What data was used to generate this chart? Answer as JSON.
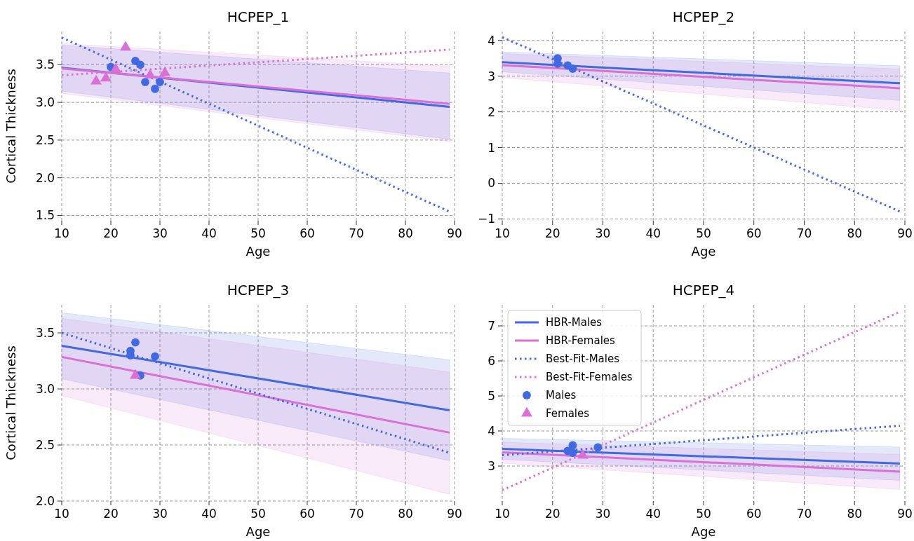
{
  "chart_data": [
    {
      "type": "line",
      "title": "HCPEP_1",
      "xlabel": "Age",
      "ylabel": "Cortical Thickness",
      "xlim": [
        10,
        90
      ],
      "xticks": [
        10,
        20,
        30,
        40,
        50,
        60,
        70,
        80,
        90
      ],
      "ylim": [
        1.43,
        3.94
      ],
      "yticks": [
        1.5,
        {
          "value": 2,
          "label": "2.0"
        },
        2.5,
        {
          "value": 3,
          "label": "3.0"
        },
        3.5
      ],
      "grid": true,
      "legend": false,
      "series": [
        {
          "type": "line",
          "color": "#4169e1",
          "line_style": "solid",
          "x": [
            10,
            89
          ],
          "values": [
            3.46,
            2.94
          ],
          "lower": [
            3.15,
            2.51
          ],
          "upper": [
            3.76,
            3.39
          ]
        },
        {
          "type": "line",
          "color": "#da70d6",
          "line_style": "solid",
          "x": [
            10,
            89
          ],
          "values": [
            3.45,
            2.98
          ],
          "lower": [
            3.12,
            2.48
          ],
          "upper": [
            3.78,
            3.48
          ]
        },
        {
          "type": "line",
          "color": "#4169e1",
          "line_style": "dotted",
          "x": [
            10,
            89
          ],
          "values": [
            3.86,
            1.55
          ]
        },
        {
          "type": "line",
          "color": "#da70d6",
          "line_style": "dotted",
          "x": [
            10,
            89
          ],
          "values": [
            3.36,
            3.7
          ]
        },
        {
          "type": "scatter",
          "color": "#4169e1",
          "marker": "circle",
          "x": [
            20,
            25,
            26,
            27,
            29,
            30
          ],
          "values": [
            3.47,
            3.55,
            3.5,
            3.27,
            3.18,
            3.27
          ]
        },
        {
          "type": "scatter",
          "color": "#da70d6",
          "marker": "triangle",
          "x": [
            17,
            19,
            21,
            23,
            28,
            31
          ],
          "values": [
            3.28,
            3.32,
            3.44,
            3.73,
            3.36,
            3.39
          ]
        }
      ]
    },
    {
      "type": "line",
      "title": "HCPEP_2",
      "xlabel": "Age",
      "xlim": [
        10,
        90
      ],
      "xticks": [
        10,
        20,
        30,
        40,
        50,
        60,
        70,
        80,
        90
      ],
      "ylim": [
        -1.05,
        4.25
      ],
      "yticks": [
        {
          "value": -1,
          "label": "−1"
        },
        0,
        1,
        2,
        3,
        4
      ],
      "grid": true,
      "legend": false,
      "series": [
        {
          "type": "line",
          "color": "#4169e1",
          "line_style": "solid",
          "x": [
            10,
            89
          ],
          "values": [
            3.39,
            2.8
          ],
          "lower": [
            3.12,
            2.32
          ],
          "upper": [
            3.68,
            3.29
          ]
        },
        {
          "type": "line",
          "color": "#da70d6",
          "line_style": "solid",
          "x": [
            10,
            89
          ],
          "values": [
            3.31,
            2.66
          ],
          "lower": [
            2.96,
            2.04
          ],
          "upper": [
            3.63,
            3.2
          ]
        },
        {
          "type": "line",
          "color": "#4169e1",
          "line_style": "dotted",
          "x": [
            10,
            89
          ],
          "values": [
            4.09,
            -0.79
          ]
        },
        {
          "type": "scatter",
          "color": "#4169e1",
          "marker": "circle",
          "x": [
            21,
            21,
            23,
            24
          ],
          "values": [
            3.5,
            3.35,
            3.3,
            3.21
          ]
        }
      ]
    },
    {
      "type": "line",
      "title": "HCPEP_3",
      "xlabel": "Age",
      "ylabel": "Cortical Thickness",
      "xlim": [
        10,
        90
      ],
      "xticks": [
        10,
        20,
        30,
        40,
        50,
        60,
        70,
        80,
        90
      ],
      "ylim": [
        2.0,
        3.75
      ],
      "yticks": [
        {
          "value": 2,
          "label": "2.0"
        },
        2.5,
        {
          "value": 3,
          "label": "3.0"
        },
        3.5
      ],
      "grid": true,
      "legend": false,
      "series": [
        {
          "type": "line",
          "color": "#4169e1",
          "line_style": "solid",
          "x": [
            10,
            89
          ],
          "values": [
            3.385,
            2.81
          ],
          "lower": [
            3.09,
            2.36
          ],
          "upper": [
            3.68,
            3.26
          ]
        },
        {
          "type": "line",
          "color": "#da70d6",
          "line_style": "solid",
          "x": [
            10,
            89
          ],
          "values": [
            3.285,
            2.61
          ],
          "lower": [
            2.94,
            2.06
          ],
          "upper": [
            3.63,
            3.15
          ]
        },
        {
          "type": "line",
          "color": "#4169e1",
          "line_style": "dotted",
          "x": [
            10,
            89
          ],
          "values": [
            3.5,
            2.43
          ]
        },
        {
          "type": "scatter",
          "color": "#4169e1",
          "marker": "circle",
          "x": [
            24,
            24,
            25,
            26,
            29
          ],
          "values": [
            3.34,
            3.3,
            3.415,
            3.12,
            3.29
          ]
        },
        {
          "type": "scatter",
          "color": "#da70d6",
          "marker": "triangle",
          "x": [
            25
          ],
          "values": [
            3.12
          ]
        }
      ]
    },
    {
      "type": "line",
      "title": "HCPEP_4",
      "xlabel": "Age",
      "xlim": [
        10,
        90
      ],
      "xticks": [
        10,
        20,
        30,
        40,
        50,
        60,
        70,
        80,
        90
      ],
      "ylim": [
        2.0,
        7.6
      ],
      "yticks": [
        3,
        4,
        5,
        6,
        7
      ],
      "grid": true,
      "legend": "top left",
      "series": [
        {
          "type": "line",
          "name": "HBR-Males",
          "color": "#4169e1",
          "line_style": "solid",
          "x": [
            10,
            89
          ],
          "values": [
            3.49,
            3.07
          ],
          "lower": [
            3.19,
            2.59
          ],
          "upper": [
            3.79,
            3.54
          ]
        },
        {
          "type": "line",
          "name": "HBR-Females",
          "color": "#da70d6",
          "line_style": "solid",
          "x": [
            10,
            89
          ],
          "values": [
            3.39,
            2.84
          ],
          "lower": [
            3.08,
            2.33
          ],
          "upper": [
            3.68,
            3.33
          ]
        },
        {
          "type": "line",
          "name": "Best-Fit-Males",
          "color": "#4169e1",
          "line_style": "dotted",
          "x": [
            10,
            89
          ],
          "values": [
            3.31,
            4.15
          ]
        },
        {
          "type": "line",
          "name": "Best-Fit-Females",
          "color": "#da70d6",
          "line_style": "dotted",
          "x": [
            10,
            89
          ],
          "values": [
            2.31,
            7.4
          ]
        },
        {
          "type": "scatter",
          "name": "Males",
          "color": "#4169e1",
          "marker": "circle",
          "x": [
            23,
            24,
            24,
            29
          ],
          "values": [
            3.43,
            3.59,
            3.38,
            3.53
          ]
        },
        {
          "type": "scatter",
          "name": "Females",
          "color": "#da70d6",
          "marker": "triangle",
          "x": [
            26
          ],
          "values": [
            3.3
          ]
        }
      ]
    }
  ]
}
